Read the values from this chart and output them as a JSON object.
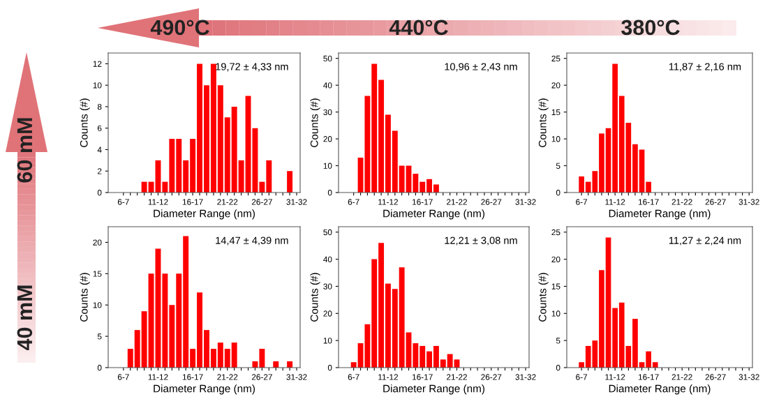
{
  "chart_data": [
    {
      "type": "bar",
      "xlabel": "Diameter Range (nm)",
      "ylabel": "Counts (#)",
      "color": "#ff0000",
      "ylim": [
        0,
        13
      ],
      "yticks": [
        0,
        2,
        4,
        6,
        8,
        10,
        12
      ],
      "annotations": [
        "19,72 ± 4,33 nm"
      ],
      "categories": [
        "6-7",
        null,
        null,
        null,
        null,
        "11-12",
        null,
        null,
        null,
        null,
        "16-17",
        null,
        null,
        null,
        null,
        "21-22",
        null,
        null,
        null,
        null,
        "26-27",
        null,
        null,
        null,
        null,
        "31-32"
      ],
      "values": [
        0,
        0,
        0,
        1,
        1,
        3,
        1,
        5,
        5,
        3,
        5,
        12,
        10,
        12,
        10,
        7,
        8,
        3,
        9,
        6,
        1,
        3,
        0,
        0,
        2,
        0
      ]
    },
    {
      "type": "bar",
      "xlabel": "Diameter Range (nm)",
      "ylabel": "Counts (#)",
      "color": "#ff0000",
      "ylim": [
        0,
        52
      ],
      "yticks": [
        0,
        10,
        20,
        30,
        40,
        50
      ],
      "annotations": [
        "10,96 ± 2,43 nm"
      ],
      "categories": [
        "6-7",
        null,
        null,
        null,
        null,
        "11-12",
        null,
        null,
        null,
        null,
        "16-17",
        null,
        null,
        null,
        null,
        "21-22",
        null,
        null,
        null,
        null,
        "26-27",
        null,
        null,
        null,
        null,
        "31-32"
      ],
      "values": [
        0,
        13,
        36,
        48,
        42,
        29,
        23,
        10,
        10,
        7,
        4,
        5,
        3,
        0,
        0,
        0,
        0,
        0,
        0,
        0,
        0,
        0,
        0,
        0,
        0,
        0
      ]
    },
    {
      "type": "bar",
      "xlabel": "Diameter Range (nm)",
      "ylabel": "Counts (#)",
      "color": "#ff0000",
      "ylim": [
        0,
        26
      ],
      "yticks": [
        0,
        5,
        10,
        15,
        20,
        25
      ],
      "annotations": [
        "11,87 ± 2,16 nm"
      ],
      "categories": [
        "6-7",
        null,
        null,
        null,
        null,
        "11-12",
        null,
        null,
        null,
        null,
        "16-17",
        null,
        null,
        null,
        null,
        "21-22",
        null,
        null,
        null,
        null,
        "26-27",
        null,
        null,
        null,
        null,
        "31-32"
      ],
      "values": [
        3,
        2,
        4,
        11,
        12,
        24,
        18,
        13,
        9,
        8,
        2,
        0,
        0,
        0,
        0,
        0,
        0,
        0,
        0,
        0,
        0,
        0,
        0,
        0,
        0,
        0
      ]
    },
    {
      "type": "bar",
      "xlabel": "Diameter Range (nm)",
      "ylabel": "Counts (#)",
      "color": "#ff0000",
      "ylim": [
        0,
        22.5
      ],
      "yticks": [
        0,
        5,
        10,
        15,
        20
      ],
      "annotations": [
        "14,47 ± 4,39 nm"
      ],
      "categories": [
        "6-7",
        null,
        null,
        null,
        null,
        "11-12",
        null,
        null,
        null,
        null,
        "16-17",
        null,
        null,
        null,
        null,
        "21-22",
        null,
        null,
        null,
        null,
        "26-27",
        null,
        null,
        null,
        null,
        "31-32"
      ],
      "values": [
        0,
        3,
        6,
        9,
        15,
        19,
        15,
        10,
        15,
        21,
        3,
        12,
        6,
        3,
        4,
        3,
        4,
        0,
        0,
        1,
        3,
        0,
        1,
        0,
        1,
        0
      ]
    },
    {
      "type": "bar",
      "xlabel": "Diameter Range (nm)",
      "ylabel": "Counts (#)",
      "color": "#ff0000",
      "ylim": [
        0,
        52
      ],
      "yticks": [
        0,
        10,
        20,
        30,
        40,
        50
      ],
      "annotations": [
        "12,21 ± 3,08 nm"
      ],
      "categories": [
        "6-7",
        null,
        null,
        null,
        null,
        "11-12",
        null,
        null,
        null,
        null,
        "16-17",
        null,
        null,
        null,
        null,
        "21-22",
        null,
        null,
        null,
        null,
        "26-27",
        null,
        null,
        null,
        null,
        "31-32"
      ],
      "values": [
        2,
        9,
        16,
        40,
        46,
        31,
        29,
        37,
        13,
        9,
        8,
        6,
        8,
        3,
        5,
        3,
        0,
        0,
        0,
        0,
        0,
        0,
        0,
        0,
        0,
        0
      ]
    },
    {
      "type": "bar",
      "xlabel": "Diameter Range (nm)",
      "ylabel": "Counts (#)",
      "color": "#ff0000",
      "ylim": [
        0,
        26
      ],
      "yticks": [
        0,
        5,
        10,
        15,
        20,
        25
      ],
      "annotations": [
        "11,27 ± 2,24 nm"
      ],
      "categories": [
        "6-7",
        null,
        null,
        null,
        null,
        "11-12",
        null,
        null,
        null,
        null,
        "16-17",
        null,
        null,
        null,
        null,
        "21-22",
        null,
        null,
        null,
        null,
        "26-27",
        null,
        null,
        null,
        null,
        "31-32"
      ],
      "values": [
        1,
        4,
        5,
        18,
        24,
        11,
        12,
        4,
        9,
        1,
        3,
        1,
        0,
        0,
        0,
        0,
        0,
        0,
        0,
        0,
        0,
        0,
        0,
        0,
        0,
        0
      ]
    },
    {
      "type": "other",
      "annotations": [
        "490°C",
        "440°C",
        "380°C",
        "60 mM",
        "40 mM"
      ]
    }
  ]
}
